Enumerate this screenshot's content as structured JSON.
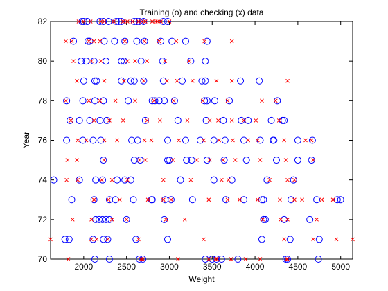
{
  "chart_data": {
    "type": "scatter",
    "title": "Training (o) and checking (x) data",
    "xlabel": "Weight",
    "ylabel": "Year",
    "xlim": [
      1613,
      5140
    ],
    "ylim": [
      70,
      82
    ],
    "xticks": [
      2000,
      2500,
      3000,
      3500,
      4000,
      4500,
      5000
    ],
    "yticks": [
      70,
      72,
      74,
      76,
      78,
      80,
      82
    ],
    "grid": false,
    "legend": "none",
    "series": [
      {
        "marker": "o",
        "color": "#0000ff",
        "points": [
          [
            2130,
            70
          ],
          [
            2300,
            70
          ],
          [
            2650,
            70
          ],
          [
            2690,
            70
          ],
          [
            3420,
            70
          ],
          [
            3500,
            70
          ],
          [
            3550,
            70
          ],
          [
            3610,
            70
          ],
          [
            3800,
            70
          ],
          [
            4360,
            70
          ],
          [
            4380,
            70
          ],
          [
            4740,
            70
          ],
          [
            1780,
            71
          ],
          [
            1830,
            71
          ],
          [
            2110,
            71
          ],
          [
            2230,
            71
          ],
          [
            2280,
            71
          ],
          [
            2610,
            71
          ],
          [
            2980,
            71
          ],
          [
            4080,
            71
          ],
          [
            4410,
            71
          ],
          [
            4750,
            71
          ],
          [
            2140,
            72
          ],
          [
            2180,
            72
          ],
          [
            2220,
            72
          ],
          [
            2260,
            72
          ],
          [
            2300,
            72
          ],
          [
            2500,
            72
          ],
          [
            2940,
            72
          ],
          [
            4100,
            72
          ],
          [
            4120,
            72
          ],
          [
            4340,
            72
          ],
          [
            4640,
            72
          ],
          [
            1860,
            73
          ],
          [
            2120,
            73
          ],
          [
            2300,
            73
          ],
          [
            2370,
            73
          ],
          [
            2580,
            73
          ],
          [
            2790,
            73
          ],
          [
            2800,
            73
          ],
          [
            2950,
            73
          ],
          [
            3020,
            73
          ],
          [
            3270,
            73
          ],
          [
            3660,
            73
          ],
          [
            3870,
            73
          ],
          [
            4080,
            73
          ],
          [
            4100,
            73
          ],
          [
            4420,
            73
          ],
          [
            4720,
            73
          ],
          [
            4960,
            73
          ],
          [
            5000,
            73
          ],
          [
            1650,
            74
          ],
          [
            1950,
            74
          ],
          [
            2140,
            74
          ],
          [
            2220,
            74
          ],
          [
            2390,
            74
          ],
          [
            2480,
            74
          ],
          [
            2550,
            74
          ],
          [
            3130,
            74
          ],
          [
            3520,
            74
          ],
          [
            3730,
            74
          ],
          [
            4140,
            74
          ],
          [
            4450,
            74
          ],
          [
            2230,
            75
          ],
          [
            2590,
            75
          ],
          [
            2660,
            75
          ],
          [
            2980,
            75
          ],
          [
            3000,
            75
          ],
          [
            3200,
            75
          ],
          [
            3260,
            75
          ],
          [
            3440,
            75
          ],
          [
            3640,
            75
          ],
          [
            3900,
            75
          ],
          [
            4250,
            75
          ],
          [
            4500,
            75
          ],
          [
            4660,
            75
          ],
          [
            1800,
            76
          ],
          [
            1990,
            76
          ],
          [
            2110,
            76
          ],
          [
            2200,
            76
          ],
          [
            2560,
            76
          ],
          [
            2630,
            76
          ],
          [
            2980,
            76
          ],
          [
            3190,
            76
          ],
          [
            3360,
            76
          ],
          [
            3520,
            76
          ],
          [
            3650,
            76
          ],
          [
            3870,
            76
          ],
          [
            4060,
            76
          ],
          [
            4210,
            76
          ],
          [
            4220,
            76
          ],
          [
            4500,
            76
          ],
          [
            4670,
            76
          ],
          [
            1840,
            77
          ],
          [
            1950,
            77
          ],
          [
            2070,
            77
          ],
          [
            2190,
            77
          ],
          [
            2270,
            77
          ],
          [
            2720,
            77
          ],
          [
            3100,
            77
          ],
          [
            3430,
            77
          ],
          [
            3630,
            77
          ],
          [
            3840,
            77
          ],
          [
            3920,
            77
          ],
          [
            4190,
            77
          ],
          [
            4320,
            77
          ],
          [
            4340,
            77
          ],
          [
            1800,
            78
          ],
          [
            1990,
            78
          ],
          [
            2130,
            78
          ],
          [
            2230,
            78
          ],
          [
            2520,
            78
          ],
          [
            2800,
            78
          ],
          [
            2830,
            78
          ],
          [
            2880,
            78
          ],
          [
            2940,
            78
          ],
          [
            3060,
            78
          ],
          [
            3410,
            78
          ],
          [
            3440,
            78
          ],
          [
            3530,
            78
          ],
          [
            3700,
            78
          ],
          [
            4260,
            78
          ],
          [
            2000,
            79
          ],
          [
            2130,
            79
          ],
          [
            2150,
            79
          ],
          [
            2440,
            79
          ],
          [
            2550,
            79
          ],
          [
            2590,
            79
          ],
          [
            2700,
            79
          ],
          [
            2930,
            79
          ],
          [
            3150,
            79
          ],
          [
            3380,
            79
          ],
          [
            3420,
            79
          ],
          [
            3830,
            79
          ],
          [
            4050,
            79
          ],
          [
            1970,
            80
          ],
          [
            2030,
            80
          ],
          [
            2120,
            80
          ],
          [
            2260,
            80
          ],
          [
            2440,
            80
          ],
          [
            2470,
            80
          ],
          [
            2670,
            80
          ],
          [
            2920,
            80
          ],
          [
            3250,
            80
          ],
          [
            3420,
            80
          ],
          [
            1880,
            81
          ],
          [
            2050,
            81
          ],
          [
            2070,
            81
          ],
          [
            2240,
            81
          ],
          [
            2360,
            81
          ],
          [
            2480,
            81
          ],
          [
            2620,
            81
          ],
          [
            2710,
            81
          ],
          [
            2900,
            81
          ],
          [
            3030,
            81
          ],
          [
            3190,
            81
          ],
          [
            3440,
            81
          ],
          [
            1980,
            82
          ],
          [
            2000,
            82
          ],
          [
            2040,
            82
          ],
          [
            2190,
            82
          ],
          [
            2230,
            82
          ],
          [
            2290,
            82
          ],
          [
            2380,
            82
          ],
          [
            2410,
            82
          ],
          [
            2440,
            82
          ],
          [
            2590,
            82
          ],
          [
            2620,
            82
          ],
          [
            2650,
            82
          ],
          [
            2700,
            82
          ],
          [
            2930,
            82
          ],
          [
            2980,
            82
          ]
        ]
      },
      {
        "marker": "x",
        "color": "#ff0000",
        "points": [
          [
            1820,
            70
          ],
          [
            2670,
            70
          ],
          [
            2690,
            70
          ],
          [
            3100,
            70
          ],
          [
            3460,
            70
          ],
          [
            3540,
            70
          ],
          [
            3560,
            70
          ],
          [
            3720,
            70
          ],
          [
            3890,
            70
          ],
          [
            4060,
            70
          ],
          [
            4370,
            70
          ],
          [
            4380,
            70
          ],
          [
            1613,
            71
          ],
          [
            2090,
            71
          ],
          [
            2150,
            71
          ],
          [
            2280,
            71
          ],
          [
            2640,
            71
          ],
          [
            3400,
            71
          ],
          [
            4340,
            71
          ],
          [
            4680,
            71
          ],
          [
            4950,
            71
          ],
          [
            5140,
            71
          ],
          [
            1870,
            72
          ],
          [
            2090,
            72
          ],
          [
            2330,
            72
          ],
          [
            2500,
            72
          ],
          [
            2960,
            72
          ],
          [
            3180,
            72
          ],
          [
            4090,
            72
          ],
          [
            4300,
            72
          ],
          [
            4380,
            72
          ],
          [
            4720,
            72
          ],
          [
            2120,
            73
          ],
          [
            2290,
            73
          ],
          [
            2420,
            73
          ],
          [
            2750,
            73
          ],
          [
            2930,
            73
          ],
          [
            3020,
            73
          ],
          [
            3460,
            73
          ],
          [
            3680,
            73
          ],
          [
            3820,
            73
          ],
          [
            4030,
            73
          ],
          [
            4290,
            73
          ],
          [
            4460,
            73
          ],
          [
            4550,
            73
          ],
          [
            4780,
            73
          ],
          [
            4910,
            73
          ],
          [
            1800,
            74
          ],
          [
            1930,
            74
          ],
          [
            2210,
            74
          ],
          [
            2330,
            74
          ],
          [
            2510,
            74
          ],
          [
            2930,
            74
          ],
          [
            3250,
            74
          ],
          [
            3610,
            74
          ],
          [
            3690,
            74
          ],
          [
            4170,
            74
          ],
          [
            4380,
            74
          ],
          [
            4460,
            74
          ],
          [
            1810,
            75
          ],
          [
            1920,
            75
          ],
          [
            2240,
            75
          ],
          [
            2650,
            75
          ],
          [
            2720,
            75
          ],
          [
            3040,
            75
          ],
          [
            3320,
            75
          ],
          [
            3470,
            75
          ],
          [
            3630,
            75
          ],
          [
            3770,
            75
          ],
          [
            4060,
            75
          ],
          [
            4360,
            75
          ],
          [
            4680,
            75
          ],
          [
            1930,
            76
          ],
          [
            2030,
            76
          ],
          [
            2240,
            76
          ],
          [
            2390,
            76
          ],
          [
            2710,
            76
          ],
          [
            2790,
            76
          ],
          [
            3110,
            76
          ],
          [
            3400,
            76
          ],
          [
            3580,
            76
          ],
          [
            3740,
            76
          ],
          [
            3920,
            76
          ],
          [
            4030,
            76
          ],
          [
            4340,
            76
          ],
          [
            4590,
            76
          ],
          [
            4660,
            76
          ],
          [
            1850,
            77
          ],
          [
            2120,
            77
          ],
          [
            2300,
            77
          ],
          [
            2460,
            77
          ],
          [
            2740,
            77
          ],
          [
            2890,
            77
          ],
          [
            3210,
            77
          ],
          [
            3470,
            77
          ],
          [
            3570,
            77
          ],
          [
            3730,
            77
          ],
          [
            3870,
            77
          ],
          [
            4010,
            77
          ],
          [
            4280,
            77
          ],
          [
            1790,
            78
          ],
          [
            2060,
            78
          ],
          [
            2190,
            78
          ],
          [
            2370,
            78
          ],
          [
            2600,
            78
          ],
          [
            2820,
            78
          ],
          [
            3050,
            78
          ],
          [
            3390,
            78
          ],
          [
            3680,
            78
          ],
          [
            4080,
            78
          ],
          [
            4240,
            78
          ],
          [
            1920,
            79
          ],
          [
            2240,
            79
          ],
          [
            2470,
            79
          ],
          [
            2700,
            79
          ],
          [
            2970,
            79
          ],
          [
            3090,
            79
          ],
          [
            3270,
            79
          ],
          [
            3550,
            79
          ],
          [
            3730,
            79
          ],
          [
            4380,
            79
          ],
          [
            1880,
            80
          ],
          [
            2090,
            80
          ],
          [
            2200,
            80
          ],
          [
            2510,
            80
          ],
          [
            2600,
            80
          ],
          [
            2740,
            80
          ],
          [
            2950,
            80
          ],
          [
            3230,
            80
          ],
          [
            1790,
            81
          ],
          [
            1860,
            81
          ],
          [
            2060,
            81
          ],
          [
            2120,
            81
          ],
          [
            2190,
            81
          ],
          [
            2480,
            81
          ],
          [
            2710,
            81
          ],
          [
            2880,
            81
          ],
          [
            3080,
            81
          ],
          [
            3410,
            81
          ],
          [
            3730,
            81
          ],
          [
            1940,
            82
          ],
          [
            2000,
            82
          ],
          [
            2080,
            82
          ],
          [
            2200,
            82
          ],
          [
            2240,
            82
          ],
          [
            2350,
            82
          ],
          [
            2460,
            82
          ],
          [
            2510,
            82
          ],
          [
            2570,
            82
          ],
          [
            2640,
            82
          ],
          [
            2680,
            82
          ],
          [
            2720,
            82
          ],
          [
            2800,
            82
          ],
          [
            2840,
            82
          ],
          [
            2860,
            82
          ],
          [
            2900,
            82
          ],
          [
            3000,
            82
          ]
        ]
      }
    ]
  }
}
